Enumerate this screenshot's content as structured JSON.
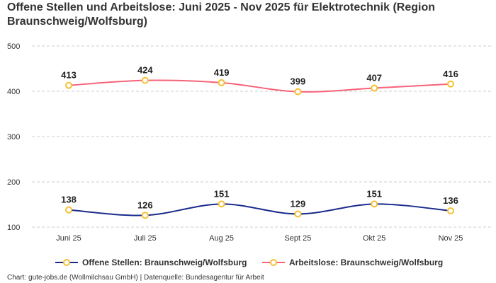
{
  "chart_data": {
    "type": "line",
    "title": "Offene Stellen und Arbeitslose: Juni 2025 - Nov 2025 für Elektrotechnik (Region Braunschweig/Wolfsburg)",
    "categories": [
      "Juni 25",
      "Juli 25",
      "Aug 25",
      "Sept 25",
      "Okt 25",
      "Nov 25"
    ],
    "series": [
      {
        "name": "Offene Stellen: Braunschweig/Wolfsburg",
        "values": [
          138,
          126,
          151,
          129,
          151,
          136
        ],
        "color": "#1a2b8c"
      },
      {
        "name": "Arbeitslose: Braunschweig/Wolfsburg",
        "values": [
          413,
          424,
          419,
          399,
          407,
          416
        ],
        "color": "#f7627a"
      }
    ],
    "marker_color": "#f5c033",
    "yticks": [
      100,
      200,
      300,
      400,
      500
    ],
    "ylim": [
      100,
      500
    ],
    "grid": true,
    "legend": "bottom",
    "xlabel": "",
    "ylabel": ""
  },
  "footer": "Chart: gute-jobs.de (Wollmilchsau GmbH) | Datenquelle: Bundesagentur für Arbeit"
}
